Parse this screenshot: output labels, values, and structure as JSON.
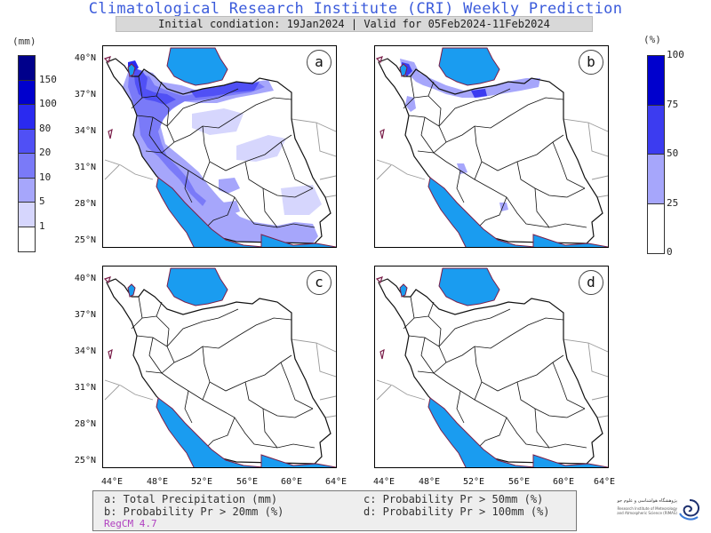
{
  "header": {
    "title": "Climatological Research Institute (CRI) Weekly Prediction",
    "subtitle": "Initial condiation: 19Jan2024 | Valid for 05Feb2024-11Feb2024"
  },
  "panels": [
    {
      "letter": "a",
      "variable": "Total Precipitation (mm)"
    },
    {
      "letter": "b",
      "variable": "Probability Pr > 20mm (%)"
    },
    {
      "letter": "c",
      "variable": "Probability Pr > 50mm (%)"
    },
    {
      "letter": "d",
      "variable": "Probability Pr > 100mm (%)"
    }
  ],
  "lat_labels": [
    "40°N",
    "37°N",
    "34°N",
    "31°N",
    "28°N",
    "25°N"
  ],
  "lon_labels": [
    "44°E",
    "48°E",
    "52°E",
    "56°E",
    "60°E",
    "64°E"
  ],
  "precip_colorbar": {
    "unit": "(mm)",
    "levels": [
      "150",
      "100",
      "80",
      "20",
      "10",
      "5",
      "1"
    ],
    "colors": [
      "#00008b",
      "#0000cd",
      "#2a2af0",
      "#5050f5",
      "#7a7af8",
      "#a6a6fb",
      "#d6d6fd",
      "#ffffff"
    ]
  },
  "prob_colorbar": {
    "unit": "(%)",
    "levels": [
      "100",
      "75",
      "50",
      "25",
      "0"
    ],
    "colors": [
      "#0000cd",
      "#3c3cf0",
      "#a6a6fb",
      "#ffffff"
    ]
  },
  "legend": {
    "a": "a: Total Precipitation (mm)",
    "b": "b: Probability Pr > 20mm (%)",
    "c": "c: Probability Pr > 50mm (%)",
    "d": "d: Probability Pr > 100mm (%)",
    "model": "RegCM 4.7"
  },
  "logo": {
    "line1": "پژوهشگاه هواشناسی و علوم جو",
    "line2": "Research Institute of Meteorology and Atmospheric Science (RIMAS)"
  },
  "colors": {
    "sea": "#1a9cf0",
    "accent": "#3b5bdb",
    "model_text": "#b040c0"
  }
}
